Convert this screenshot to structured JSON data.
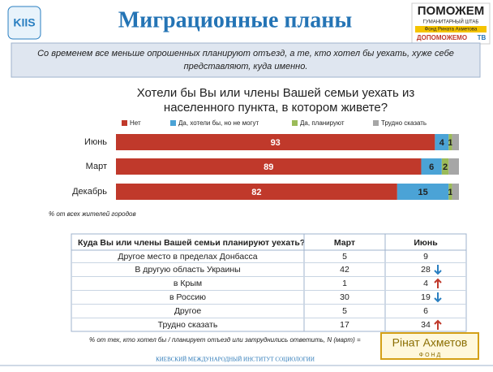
{
  "header": {
    "title": "Миграционные планы",
    "logo_left": "KIIS",
    "logo_right": {
      "brand": "ПОМОЖЕМ",
      "line1": "ГУМАНИТАРНЫЙ ШТАБ",
      "line2": "Фонд Рината Ахметова",
      "brand2": "ДОПОМОЖЕМО",
      "tv": "ТВ"
    }
  },
  "summary": [
    "Со временем все меньше опрошенных планируют отъезд, а те, кто хотел бы уехать, хуже себе",
    "представляют, куда именно."
  ],
  "chart_data": {
    "type": "stacked-bar-horizontal",
    "title": [
      "Хотели бы Вы или члены Вашей семьи уехать из",
      "населенного пункта, в котором живете?"
    ],
    "categories": [
      "Июнь",
      "Март",
      "Декабрь"
    ],
    "xlim": [
      0,
      100
    ],
    "legend": "top",
    "series": [
      {
        "name": "Нет",
        "color": "#c0392b",
        "values": [
          93,
          89,
          82
        ]
      },
      {
        "name": "Да, хотели бы, но не могут",
        "color": "#4ba3d6",
        "values": [
          4,
          6,
          15
        ]
      },
      {
        "name": "Да, планируют",
        "color": "#9bbb59",
        "values": [
          1,
          2,
          1
        ]
      },
      {
        "name": "Трудно сказать",
        "color": "#a6a6a6",
        "values": [
          2,
          3,
          2
        ],
        "labels": false
      }
    ]
  },
  "chart_note": "% от всех жителей городов",
  "table": {
    "header": [
      "Куда Вы или члены Вашей семьи планируют уехать?",
      "Март",
      "Июнь"
    ],
    "rows": [
      [
        "Другое место в пределах Донбасса",
        "5",
        "9"
      ],
      [
        "В другую область Украины",
        "42",
        "28"
      ],
      [
        "в Крым",
        "1",
        "4"
      ],
      [
        "в Россию",
        "30",
        "19"
      ],
      [
        "Другое",
        "5",
        "6"
      ],
      [
        "Трудно сказать",
        "17",
        "34"
      ]
    ]
  },
  "table_note": "% от тех, кто хотел бы / планирует отъезд или затруднились ответить, N (март) =",
  "footer": {
    "institute": "КИЕВСКИЙ МЕЖДУНАРОДНЫЙ ИНСТИТУТ СОЦИОЛОГИИ",
    "fund": "Рінат Ахметов",
    "fund_sub": "Ф О Н Д"
  }
}
